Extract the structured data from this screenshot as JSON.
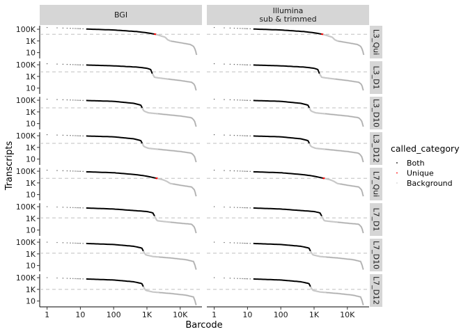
{
  "chart_data": {
    "type": "scatter",
    "title": "",
    "xlabel": "Barcode",
    "ylabel": "Transcripts",
    "x_scale": "log10",
    "y_scale": "log10",
    "xlim": [
      0.6,
      45000
    ],
    "ylim": [
      1,
      400000
    ],
    "x_ticks": [
      {
        "value": 1,
        "label": "1"
      },
      {
        "value": 10,
        "label": "10"
      },
      {
        "value": 100,
        "label": "100"
      },
      {
        "value": 1000,
        "label": "1K"
      },
      {
        "value": 10000,
        "label": "10K"
      }
    ],
    "y_ticks": [
      {
        "value": 100000,
        "label": "100K"
      },
      {
        "value": 1000,
        "label": "1K"
      },
      {
        "value": 10,
        "label": "10"
      }
    ],
    "grid": false,
    "columns": [
      {
        "key": "bgi",
        "label": "BGI"
      },
      {
        "key": "illumina",
        "label": "Illumina\nsub & trimmed",
        "label_lines": [
          "Illumina",
          "sub & trimmed"
        ]
      }
    ],
    "legend": {
      "title": "called_category",
      "position": "right",
      "entries": [
        {
          "label": "Both",
          "color": "#000000"
        },
        {
          "label": "Unique",
          "color": "#ff0000"
        },
        {
          "label": "Background",
          "color": "#d3d3d3"
        }
      ]
    },
    "threshold_color": "#bfbfbf",
    "rows": [
      {
        "label": "L3_Qui",
        "threshold": 14000,
        "cells": 1800,
        "unique": [
          1650,
          1850
        ],
        "top": 200000,
        "curve": [
          [
            15,
            110000
          ],
          [
            100,
            75000
          ],
          [
            500,
            40000
          ],
          [
            1000,
            25000
          ],
          [
            1800,
            14000
          ],
          [
            2500,
            8000
          ],
          [
            3500,
            4500
          ],
          [
            4200,
            1600
          ],
          [
            5000,
            1000
          ],
          [
            10000,
            500
          ],
          [
            20000,
            250
          ],
          [
            25000,
            120
          ],
          [
            28000,
            40
          ],
          [
            31000,
            4
          ]
        ]
      },
      {
        "label": "L3_D1",
        "threshold": 6000,
        "cells": 1450,
        "unique": null,
        "top": 150000,
        "curve": [
          [
            15,
            90000
          ],
          [
            100,
            65000
          ],
          [
            500,
            40000
          ],
          [
            1000,
            25000
          ],
          [
            1300,
            15000
          ],
          [
            1450,
            3000
          ],
          [
            1700,
            700
          ],
          [
            3000,
            450
          ],
          [
            10000,
            200
          ],
          [
            22000,
            100
          ],
          [
            27000,
            40
          ],
          [
            30000,
            4
          ]
        ]
      },
      {
        "label": "L3_D10",
        "threshold": 5000,
        "cells": 720,
        "unique": null,
        "top": 150000,
        "curve": [
          [
            15,
            90000
          ],
          [
            100,
            65000
          ],
          [
            400,
            30000
          ],
          [
            650,
            15000
          ],
          [
            720,
            5000
          ],
          [
            800,
            1500
          ],
          [
            1100,
            700
          ],
          [
            3000,
            400
          ],
          [
            10000,
            200
          ],
          [
            22000,
            100
          ],
          [
            27000,
            30
          ],
          [
            30000,
            3
          ]
        ]
      },
      {
        "label": "L3_D12",
        "threshold": 5000,
        "cells": 720,
        "unique": null,
        "top": 150000,
        "curve": [
          [
            15,
            90000
          ],
          [
            100,
            65000
          ],
          [
            400,
            30000
          ],
          [
            650,
            15000
          ],
          [
            720,
            5000
          ],
          [
            800,
            1500
          ],
          [
            1100,
            700
          ],
          [
            3000,
            400
          ],
          [
            10000,
            200
          ],
          [
            22000,
            100
          ],
          [
            27000,
            30
          ],
          [
            30000,
            3
          ]
        ]
      },
      {
        "label": "L7_Qui",
        "threshold": 6000,
        "cells": 2000,
        "unique": [
          1850,
          2050
        ],
        "top": 150000,
        "curve": [
          [
            15,
            80000
          ],
          [
            100,
            55000
          ],
          [
            500,
            25000
          ],
          [
            1000,
            14000
          ],
          [
            2000,
            6000
          ],
          [
            3000,
            3500
          ],
          [
            4000,
            1800
          ],
          [
            5000,
            800
          ],
          [
            10000,
            400
          ],
          [
            22000,
            200
          ],
          [
            27000,
            60
          ],
          [
            30000,
            5
          ]
        ]
      },
      {
        "label": "L7_D1",
        "threshold": 1200,
        "cells": 1700,
        "unique": null,
        "top": 100000,
        "curve": [
          [
            15,
            60000
          ],
          [
            100,
            40000
          ],
          [
            1000,
            15000
          ],
          [
            1500,
            9000
          ],
          [
            1700,
            2500
          ],
          [
            2000,
            400
          ],
          [
            3000,
            300
          ],
          [
            10000,
            150
          ],
          [
            22000,
            100
          ],
          [
            27000,
            30
          ],
          [
            30000,
            3
          ]
        ]
      },
      {
        "label": "L7_D10",
        "threshold": 1300,
        "cells": 780,
        "unique": null,
        "top": 100000,
        "curve": [
          [
            15,
            60000
          ],
          [
            100,
            40000
          ],
          [
            400,
            20000
          ],
          [
            700,
            10000
          ],
          [
            780,
            3000
          ],
          [
            900,
            700
          ],
          [
            1500,
            350
          ],
          [
            5000,
            200
          ],
          [
            15000,
            100
          ],
          [
            25000,
            50
          ],
          [
            28000,
            10
          ],
          [
            30000,
            2
          ]
        ]
      },
      {
        "label": "L7_D12",
        "threshold": 1000,
        "cells": 780,
        "unique": null,
        "top": 100000,
        "curve": [
          [
            15,
            60000
          ],
          [
            100,
            40000
          ],
          [
            400,
            20000
          ],
          [
            700,
            10000
          ],
          [
            780,
            3000
          ],
          [
            900,
            700
          ],
          [
            1500,
            350
          ],
          [
            5000,
            200
          ],
          [
            15000,
            100
          ],
          [
            25000,
            50
          ],
          [
            28000,
            10
          ],
          [
            30000,
            2
          ]
        ]
      }
    ]
  }
}
